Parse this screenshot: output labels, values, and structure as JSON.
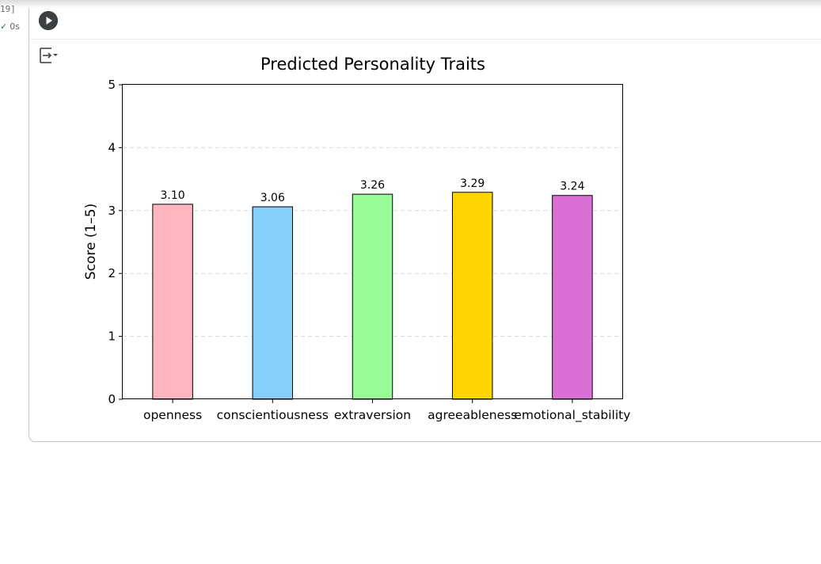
{
  "cell": {
    "execution_count": "19]",
    "status_time": "0s",
    "run_icon": "play-circle-icon",
    "output_toggle_icon": "output-toggle-icon"
  },
  "colors": {
    "bar_edge": "#000000",
    "grid": "#d9d9d9",
    "status_check": "#188038"
  },
  "chart_data": {
    "type": "bar",
    "title": "Predicted Personality Traits",
    "xlabel": "",
    "ylabel": "Score (1–5)",
    "ylim": [
      0,
      5
    ],
    "yticks": [
      "0",
      "1",
      "2",
      "3",
      "4",
      "5"
    ],
    "grid": "y-axis dashed",
    "categories": [
      "openness",
      "conscientiousness",
      "extraversion",
      "agreeableness",
      "emotional_stability"
    ],
    "values": [
      3.1,
      3.06,
      3.26,
      3.29,
      3.24
    ],
    "labels": [
      "3.10",
      "3.06",
      "3.26",
      "3.29",
      "3.24"
    ],
    "bar_colors": [
      "#ffb6c1",
      "#87cefa",
      "#98fb98",
      "#ffd700",
      "#da70d6"
    ]
  }
}
